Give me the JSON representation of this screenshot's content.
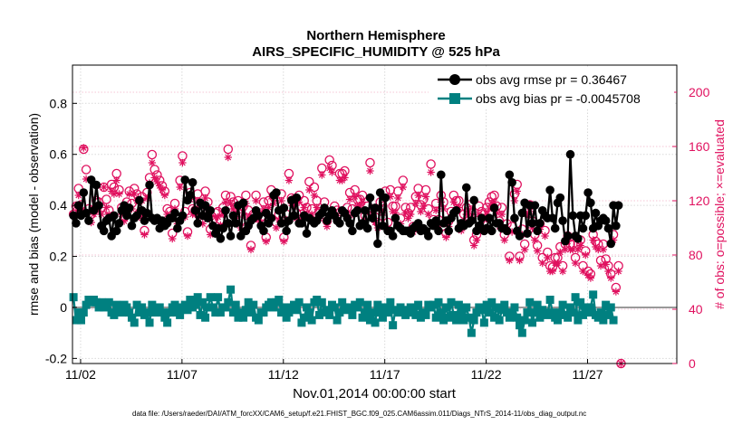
{
  "chart_data": {
    "type": "line",
    "title": "Northern Hemisphere",
    "subtitle": "AIRS_SPECIFIC_HUMIDITY @ 525 hPa",
    "xlabel": "Nov.01,2014 00:00:00 start",
    "ylabel": "rmse and bias (model - observation)",
    "ylabel_right": "# of obs: o=possible; ×=evaluated",
    "footer": "data file: /Users/raeder/DAI/ATM_forcXX/CAM6_setup/f.e21.FHIST_BGC.f09_025.CAM6assim.011/Diags_NTrS_2014-11/obs_diag_output.nc",
    "x_ticks": [
      "11/02",
      "11/07",
      "11/12",
      "11/17",
      "11/22",
      "11/27"
    ],
    "x_tick_days": [
      2,
      7,
      12,
      17,
      22,
      27
    ],
    "xlim": [
      1.6,
      31.4
    ],
    "ylim": [
      -0.22,
      0.95
    ],
    "y_ticks": [
      -0.2,
      0,
      0.2,
      0.4,
      0.6,
      0.8
    ],
    "y_tick_labels": [
      "-0.2",
      "0",
      "0.2",
      "0.4",
      "0.6",
      "0.8"
    ],
    "ylim_right": [
      0,
      220
    ],
    "y_ticks_right": [
      0,
      40,
      80,
      120,
      160,
      200
    ],
    "y_tick_labels_right": [
      "0",
      "40",
      "80",
      "120",
      "160",
      "200"
    ],
    "x_start_day": 1.65,
    "x_step_day": 0.125,
    "series": [
      {
        "name": "obs avg rmse pr = 0.36467",
        "color": "#000000",
        "values": [
          0.36,
          0.33,
          0.4,
          0.36,
          0.45,
          0.37,
          0.34,
          0.5,
          0.38,
          0.48,
          0.4,
          0.32,
          0.3,
          0.34,
          0.35,
          0.28,
          0.36,
          0.3,
          0.33,
          0.38,
          0.4,
          0.36,
          0.39,
          0.32,
          0.35,
          0.36,
          0.42,
          0.38,
          0.34,
          0.37,
          0.48,
          0.35,
          0.34,
          0.35,
          0.31,
          0.34,
          0.32,
          0.33,
          0.35,
          0.35,
          0.37,
          0.31,
          0.34,
          0.36,
          0.5,
          0.42,
          0.44,
          0.49,
          0.38,
          0.33,
          0.41,
          0.36,
          0.4,
          0.35,
          0.38,
          0.32,
          0.29,
          0.31,
          0.27,
          0.31,
          0.38,
          0.33,
          0.28,
          0.36,
          0.33,
          0.4,
          0.28,
          0.41,
          0.3,
          0.32,
          0.34,
          0.35,
          0.38,
          0.36,
          0.32,
          0.3,
          0.37,
          0.33,
          0.35,
          0.44,
          0.45,
          0.38,
          0.33,
          0.39,
          0.3,
          0.34,
          0.42,
          0.36,
          0.43,
          0.33,
          0.33,
          0.36,
          0.29,
          0.35,
          0.34,
          0.33,
          0.34,
          0.36,
          0.37,
          0.39,
          0.34,
          0.36,
          0.38,
          0.36,
          0.34,
          0.33,
          0.38,
          0.37,
          0.35,
          0.33,
          0.3,
          0.37,
          0.38,
          0.32,
          0.33,
          0.38,
          0.31,
          0.43,
          0.35,
          0.39,
          0.25,
          0.45,
          0.32,
          0.43,
          0.3,
          0.3,
          0.28,
          0.35,
          0.32,
          0.31,
          0.3,
          0.3,
          0.3,
          0.29,
          0.31,
          0.32,
          0.33,
          0.3,
          0.31,
          0.3,
          0.28,
          0.33,
          0.32,
          0.34,
          0.3,
          0.52,
          0.33,
          0.34,
          0.3,
          0.35,
          0.37,
          0.38,
          0.31,
          0.33,
          0.32,
          0.47,
          0.33,
          0.34,
          0.42,
          0.3,
          0.32,
          0.35,
          0.3,
          0.31,
          0.35,
          0.3,
          0.39,
          0.33,
          0.33,
          0.31,
          0.31,
          0.3,
          0.52,
          0.49,
          0.35,
          0.3,
          0.28,
          0.37,
          0.41,
          0.29,
          0.4,
          0.33,
          0.4,
          0.3,
          0.33,
          0.38,
          0.36,
          0.35,
          0.46,
          0.35,
          0.31,
          0.41,
          0.43,
          0.34,
          0.26,
          0.28,
          0.6,
          0.36,
          0.28,
          0.27,
          0.36,
          0.31,
          0.36,
          0.45,
          0.41,
          0.31,
          0.37,
          0.32,
          0.34,
          0.35,
          0.34,
          0.31,
          0.25,
          0.4,
          0.32,
          0.4
        ]
      },
      {
        "name": "obs avg bias pr = -0.0045708",
        "color": "#008080",
        "values": [
          0.04,
          -0.05,
          -0.02,
          -0.05,
          -0.02,
          0.01,
          0.03,
          0.02,
          0.03,
          0.02,
          0.0,
          0.02,
          0.0,
          0.01,
          0.02,
          -0.02,
          -0.03,
          0.01,
          -0.01,
          -0.02,
          0.01,
          0.0,
          -0.02,
          -0.04,
          -0.06,
          0.01,
          -0.02,
          0.0,
          -0.03,
          -0.02,
          -0.06,
          0.01,
          -0.02,
          -0.01,
          0.0,
          -0.02,
          -0.04,
          -0.06,
          -0.02,
          0.0,
          0.01,
          -0.02,
          -0.03,
          0.0,
          0.01,
          -0.01,
          0.03,
          0.0,
          0.01,
          0.04,
          -0.03,
          0.02,
          -0.04,
          0.0,
          0.04,
          0.0,
          -0.02,
          0.04,
          -0.02,
          0.0,
          0.0,
          0.02,
          0.07,
          -0.02,
          0.01,
          -0.04,
          -0.02,
          -0.04,
          -0.01,
          0.02,
          -0.02,
          0.01,
          -0.04,
          -0.05,
          -0.02,
          -0.02,
          0.0,
          0.01,
          0.02,
          0.0,
          0.02,
          0.03,
          -0.02,
          0.0,
          -0.04,
          -0.02,
          0.0,
          0.01,
          -0.01,
          0.02,
          -0.06,
          -0.04,
          0.0,
          -0.02,
          -0.05,
          0.02,
          0.03,
          -0.03,
          0.02,
          -0.02,
          -0.01,
          -0.03,
          0.01,
          0.0,
          -0.05,
          -0.02,
          0.02,
          0.0,
          -0.01,
          0.0,
          -0.03,
          0.01,
          0.0,
          0.02,
          -0.04,
          -0.02,
          0.01,
          -0.05,
          -0.02,
          -0.06,
          0.01,
          -0.02,
          -0.04,
          0.0,
          -0.02,
          0.02,
          -0.07,
          -0.01,
          -0.02,
          0.0,
          -0.01,
          -0.03,
          -0.02,
          0.0,
          -0.02,
          -0.03,
          0.01,
          -0.04,
          -0.02,
          -0.03,
          0.01,
          0.0,
          0.01,
          -0.04,
          0.02,
          -0.02,
          -0.05,
          0.0,
          -0.04,
          0.02,
          -0.03,
          -0.05,
          0.01,
          -0.02,
          -0.05,
          0.0,
          -0.04,
          -0.1,
          -0.05,
          -0.02,
          0.0,
          -0.01,
          -0.06,
          0.01,
          -0.02,
          0.02,
          -0.04,
          0.0,
          -0.05,
          -0.01,
          0.01,
          -0.02,
          -0.04,
          -0.02,
          0.0,
          -0.04,
          -0.07,
          -0.1,
          -0.05,
          -0.02,
          0.02,
          -0.06,
          -0.02,
          0.01,
          -0.04,
          -0.01,
          -0.02,
          -0.03,
          0.03,
          -0.02,
          -0.04,
          -0.05,
          -0.02,
          0.01,
          -0.03,
          -0.04,
          0.0,
          -0.02,
          0.04,
          -0.05,
          0.02,
          -0.03,
          0.0,
          -0.02,
          0.0,
          0.05,
          -0.03,
          -0.04,
          -0.02,
          -0.05,
          0.01,
          -0.03,
          0.0,
          -0.05
        ]
      }
    ],
    "obs_possible": [
      110,
      116,
      129,
      117,
      158,
      143,
      114,
      110,
      113,
      120,
      119,
      115,
      130,
      121,
      113,
      132,
      130,
      140,
      128,
      115,
      108,
      119,
      127,
      118,
      129,
      125,
      111,
      123,
      98,
      126,
      137,
      154,
      143,
      139,
      135,
      131,
      127,
      114,
      112,
      96,
      118,
      107,
      135,
      153,
      112,
      97,
      126,
      114,
      113,
      125,
      112,
      107,
      127,
      119,
      99,
      106,
      111,
      112,
      106,
      115,
      124,
      158,
      123,
      119,
      115,
      120,
      105,
      116,
      124,
      113,
      87,
      110,
      124,
      110,
      108,
      119,
      93,
      120,
      128,
      123,
      104,
      110,
      125,
      93,
      110,
      140,
      122,
      121,
      111,
      124,
      110,
      120,
      115,
      134,
      114,
      130,
      120,
      111,
      144,
      119,
      105,
      150,
      146,
      116,
      113,
      140,
      140,
      142,
      115,
      126,
      114,
      128,
      121,
      121,
      124,
      109,
      116,
      148,
      114,
      108,
      104,
      119,
      116,
      127,
      104,
      128,
      116,
      116,
      127,
      107,
      135,
      115,
      111,
      115,
      101,
      123,
      129,
      117,
      121,
      128,
      114,
      147,
      106,
      118,
      106,
      124,
      119,
      96,
      105,
      112,
      124,
      120,
      120,
      102,
      110,
      115,
      117,
      113,
      91,
      95,
      116,
      112,
      110,
      115,
      119,
      123,
      124,
      116,
      105,
      115,
      95,
      103,
      79,
      101,
      125,
      132,
      79,
      99,
      88,
      114,
      117,
      105,
      95,
      87,
      103,
      78,
      98,
      82,
      72,
      71,
      78,
      78,
      86,
      72,
      88,
      94,
      88,
      88,
      78,
      88,
      91,
      72,
      83,
      68,
      66,
      95,
      90,
      88,
      76,
      88,
      77,
      72,
      66,
      95,
      56,
      72,
      0
    ],
    "obs_evaluated": [
      110,
      116,
      124,
      112,
      159,
      136,
      106,
      104,
      110,
      113,
      115,
      110,
      130,
      115,
      110,
      127,
      125,
      135,
      125,
      110,
      105,
      115,
      125,
      114,
      125,
      120,
      108,
      120,
      95,
      122,
      133,
      148,
      137,
      134,
      131,
      128,
      124,
      110,
      108,
      92,
      114,
      103,
      130,
      148,
      108,
      94,
      121,
      110,
      110,
      120,
      108,
      103,
      122,
      115,
      95,
      102,
      108,
      108,
      102,
      110,
      119,
      152,
      118,
      114,
      110,
      115,
      100,
      111,
      118,
      108,
      84,
      106,
      120,
      106,
      104,
      114,
      90,
      115,
      123,
      118,
      100,
      106,
      120,
      90,
      106,
      135,
      118,
      117,
      107,
      119,
      106,
      115,
      110,
      128,
      110,
      124,
      115,
      107,
      139,
      115,
      101,
      144,
      141,
      111,
      109,
      135,
      135,
      137,
      110,
      121,
      110,
      123,
      116,
      116,
      119,
      105,
      112,
      142,
      110,
      104,
      100,
      114,
      111,
      122,
      100,
      123,
      112,
      111,
      122,
      103,
      130,
      111,
      107,
      110,
      97,
      118,
      124,
      112,
      116,
      123,
      110,
      141,
      102,
      113,
      102,
      119,
      114,
      93,
      101,
      108,
      119,
      115,
      115,
      98,
      106,
      110,
      112,
      108,
      87,
      91,
      110,
      108,
      106,
      110,
      114,
      118,
      119,
      111,
      101,
      110,
      91,
      99,
      76,
      97,
      120,
      127,
      76,
      95,
      84,
      110,
      112,
      100,
      91,
      83,
      99,
      74,
      94,
      78,
      68,
      68,
      74,
      74,
      82,
      68,
      84,
      90,
      84,
      84,
      74,
      84,
      87,
      68,
      80,
      65,
      63,
      91,
      86,
      84,
      72,
      84,
      73,
      68,
      63,
      91,
      53,
      68,
      0
    ],
    "obs_color": "#e0115f"
  }
}
